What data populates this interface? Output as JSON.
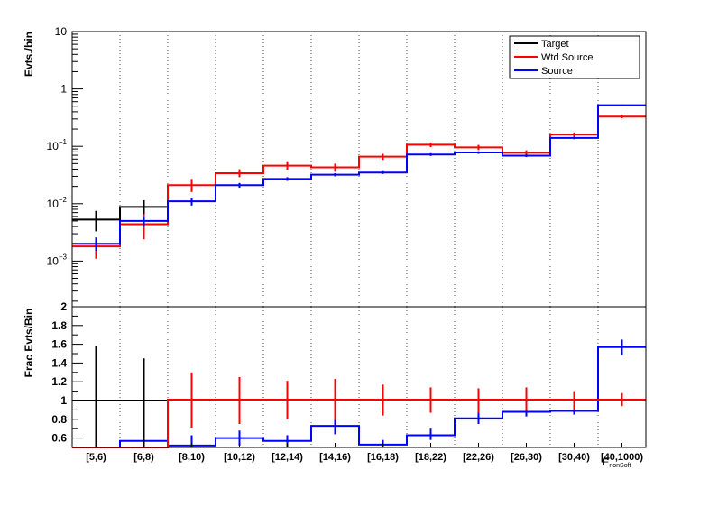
{
  "chart_data": [
    {
      "type": "line",
      "ylabel": "Evts./bin",
      "yscale": "log",
      "ylim": [
        0.00016,
        10
      ],
      "categories": [
        "[5,6)",
        "[6,8)",
        "[8,10)",
        "[10,12)",
        "[12,14)",
        "[14,16)",
        "[16,18)",
        "[18,22)",
        "[22,26)",
        "[26,30)",
        "[30,40)",
        "[40,1000)"
      ],
      "y_tick_labels": [
        {
          "value": 10,
          "base": "10",
          "exp": ""
        },
        {
          "value": 1,
          "base": "1",
          "exp": ""
        },
        {
          "value": 0.1,
          "base": "10",
          "exp": "−1"
        },
        {
          "value": 0.01,
          "base": "10",
          "exp": "−2"
        },
        {
          "value": 0.001,
          "base": "10",
          "exp": "−3"
        }
      ],
      "legend": {
        "position": "top-right",
        "entries": [
          "Target",
          "Wtd Source",
          "Source"
        ]
      },
      "grid": {
        "x": true,
        "y": false
      },
      "series": [
        {
          "name": "Target",
          "color": "#000000",
          "values": [
            0.0053,
            0.0088,
            null,
            null,
            null,
            null,
            null,
            null,
            null,
            null,
            null,
            null
          ],
          "err_low": [
            0.0033,
            0.0055,
            null,
            null,
            null,
            null,
            null,
            null,
            null,
            null,
            null,
            null
          ],
          "err_high": [
            0.0075,
            0.0115,
            null,
            null,
            null,
            null,
            null,
            null,
            null,
            null,
            null,
            null
          ]
        },
        {
          "name": "Wtd Source",
          "color": "#ff0000",
          "values": [
            0.0018,
            0.0044,
            0.021,
            0.034,
            0.046,
            0.043,
            0.066,
            0.107,
            0.096,
            0.077,
            0.16,
            0.33
          ],
          "err_low": [
            0.0011,
            0.0024,
            0.016,
            0.029,
            0.039,
            0.036,
            0.058,
            0.097,
            0.086,
            0.069,
            0.145,
            0.31
          ],
          "err_high": [
            0.0026,
            0.0066,
            0.027,
            0.04,
            0.053,
            0.05,
            0.074,
            0.117,
            0.106,
            0.085,
            0.175,
            0.35
          ]
        },
        {
          "name": "Source",
          "color": "#0000ff",
          "values": [
            0.002,
            0.005,
            0.011,
            0.021,
            0.027,
            0.032,
            0.035,
            0.072,
            0.078,
            0.069,
            0.14,
            0.52
          ],
          "err_low": [
            0.0015,
            0.004,
            0.0093,
            0.019,
            0.025,
            0.03,
            0.033,
            0.068,
            0.074,
            0.065,
            0.133,
            0.505
          ],
          "err_high": [
            0.0025,
            0.006,
            0.0127,
            0.023,
            0.029,
            0.034,
            0.037,
            0.076,
            0.082,
            0.073,
            0.147,
            0.535
          ]
        }
      ]
    },
    {
      "type": "line",
      "ylabel": "Frac Evts/Bin",
      "ylim": [
        0.5,
        2
      ],
      "y_ticks": [
        0.6,
        0.8,
        1,
        1.2,
        1.4,
        1.6,
        1.8,
        2
      ],
      "y_tick_labels": [
        "0.6",
        "0.8",
        "1",
        "1.2",
        "1.4",
        "1.6",
        "1.8",
        "2"
      ],
      "xlabel": "E_{nonSoft}",
      "categories": [
        "[5,6)",
        "[6,8)",
        "[8,10)",
        "[10,12)",
        "[12,14)",
        "[14,16)",
        "[16,18)",
        "[18,22)",
        "[22,26)",
        "[26,30)",
        "[30,40)",
        "[40,1000)"
      ],
      "category_labels": [
        "[5,6)",
        "[6,8)",
        "[8,10)",
        "[10,12)",
        "[12,14)",
        "[14,16)",
        "[16,18)",
        "[18,22)",
        "[22,26)",
        "[26,30)",
        "[30,40)",
        "[40,1000)"
      ],
      "grid": {
        "x": true,
        "y": false
      },
      "series": [
        {
          "name": "Target",
          "color": "#000000",
          "values": [
            1.0,
            1.0,
            null,
            null,
            null,
            null,
            null,
            null,
            null,
            null,
            null,
            null
          ],
          "err_low": [
            0.5,
            0.5,
            null,
            null,
            null,
            null,
            null,
            null,
            null,
            null,
            null,
            null
          ],
          "err_high": [
            1.58,
            1.45,
            null,
            null,
            null,
            null,
            null,
            null,
            null,
            null,
            null,
            null
          ]
        },
        {
          "name": "Wtd Source",
          "color": "#ff0000",
          "values": [
            0.48,
            0.5,
            1.01,
            1.01,
            1.01,
            1.01,
            1.01,
            1.01,
            1.01,
            1.01,
            1.01,
            1.01
          ],
          "err_low": [
            0.5,
            0.5,
            0.71,
            0.75,
            0.8,
            0.79,
            0.84,
            0.87,
            0.87,
            0.89,
            0.9,
            0.94
          ],
          "err_high": [
            0.5,
            0.5,
            1.3,
            1.25,
            1.21,
            1.23,
            1.17,
            1.14,
            1.13,
            1.14,
            1.1,
            1.08
          ]
        },
        {
          "name": "Source",
          "color": "#0000ff",
          "values": [
            0.5,
            0.57,
            0.52,
            0.6,
            0.57,
            0.73,
            0.53,
            0.63,
            0.81,
            0.88,
            0.89,
            1.57
          ],
          "err_low": [
            0.5,
            0.5,
            0.5,
            0.52,
            0.5,
            0.64,
            0.5,
            0.58,
            0.75,
            0.83,
            0.85,
            1.48
          ],
          "err_high": [
            0.5,
            0.81,
            0.63,
            0.68,
            0.63,
            0.8,
            0.58,
            0.7,
            0.88,
            0.95,
            0.95,
            1.65
          ]
        }
      ]
    }
  ]
}
